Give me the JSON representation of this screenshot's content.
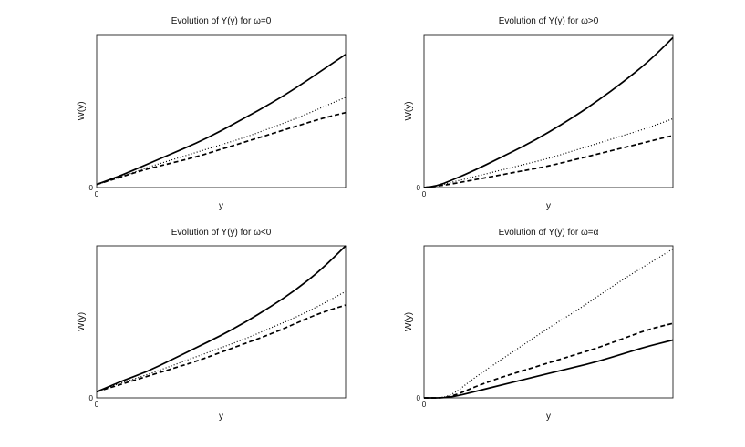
{
  "chart_data": [
    {
      "type": "line",
      "title": "Evolution of Y(y) for ω=0",
      "xlabel": "y",
      "ylabel": "W(y)",
      "x_tick_label": "0",
      "y_tick_label": "0",
      "xlim": [
        0,
        1
      ],
      "ylim": [
        0,
        1
      ],
      "grid": false,
      "x": [
        0,
        0.1,
        0.2,
        0.3,
        0.4,
        0.5,
        0.6,
        0.7,
        0.8,
        0.9,
        1.0
      ],
      "series": [
        {
          "style": "solid",
          "values": [
            0.02,
            0.08,
            0.15,
            0.22,
            0.29,
            0.37,
            0.46,
            0.55,
            0.65,
            0.76,
            0.87
          ]
        },
        {
          "style": "dotted",
          "values": [
            0.02,
            0.07,
            0.13,
            0.18,
            0.23,
            0.28,
            0.33,
            0.39,
            0.45,
            0.52,
            0.59
          ]
        },
        {
          "style": "dashed",
          "values": [
            0.02,
            0.07,
            0.12,
            0.16,
            0.2,
            0.25,
            0.3,
            0.35,
            0.4,
            0.45,
            0.49
          ]
        }
      ]
    },
    {
      "type": "line",
      "title": "Evolution of Y(y) for ω>0",
      "xlabel": "y",
      "ylabel": "W(y)",
      "x_tick_label": "0",
      "y_tick_label": "0",
      "xlim": [
        0,
        1
      ],
      "ylim": [
        0,
        1
      ],
      "grid": false,
      "x": [
        0,
        0.05,
        0.1,
        0.2,
        0.3,
        0.4,
        0.5,
        0.6,
        0.7,
        0.8,
        0.9,
        1.0
      ],
      "series": [
        {
          "style": "solid",
          "values": [
            0.0,
            0.01,
            0.04,
            0.11,
            0.19,
            0.27,
            0.36,
            0.46,
            0.57,
            0.69,
            0.82,
            0.98
          ]
        },
        {
          "style": "dotted",
          "values": [
            0.0,
            0.01,
            0.03,
            0.07,
            0.11,
            0.15,
            0.19,
            0.24,
            0.29,
            0.34,
            0.39,
            0.45
          ]
        },
        {
          "style": "dashed",
          "values": [
            0.0,
            0.01,
            0.02,
            0.05,
            0.08,
            0.11,
            0.14,
            0.18,
            0.22,
            0.26,
            0.3,
            0.34
          ]
        }
      ]
    },
    {
      "type": "line",
      "title": "Evolution of Y(y) for ω<0",
      "xlabel": "y",
      "ylabel": "W(y)",
      "x_tick_label": "0",
      "y_tick_label": "0",
      "xlim": [
        0,
        1
      ],
      "ylim": [
        0,
        1
      ],
      "grid": false,
      "x": [
        0,
        0.1,
        0.2,
        0.3,
        0.4,
        0.5,
        0.6,
        0.7,
        0.8,
        0.9,
        1.0
      ],
      "series": [
        {
          "style": "solid",
          "values": [
            0.04,
            0.11,
            0.17,
            0.25,
            0.33,
            0.41,
            0.5,
            0.6,
            0.71,
            0.84,
            1.0
          ]
        },
        {
          "style": "dotted",
          "values": [
            0.04,
            0.1,
            0.15,
            0.21,
            0.27,
            0.33,
            0.39,
            0.46,
            0.53,
            0.61,
            0.7
          ]
        },
        {
          "style": "dashed",
          "values": [
            0.04,
            0.09,
            0.14,
            0.19,
            0.24,
            0.3,
            0.36,
            0.42,
            0.49,
            0.56,
            0.61
          ]
        }
      ]
    },
    {
      "type": "line",
      "title": "Evolution of Y(y) for ω=α",
      "xlabel": "y",
      "ylabel": "W(y)",
      "x_tick_label": "0",
      "y_tick_label": "0",
      "xlim": [
        0,
        1
      ],
      "ylim": [
        0,
        1
      ],
      "grid": false,
      "x": [
        0,
        0.1,
        0.2,
        0.3,
        0.4,
        0.5,
        0.6,
        0.7,
        0.8,
        0.9,
        1.0
      ],
      "series": [
        {
          "style": "solid",
          "values": [
            0.0,
            0.0,
            0.04,
            0.08,
            0.12,
            0.16,
            0.2,
            0.24,
            0.29,
            0.34,
            0.38
          ]
        },
        {
          "style": "dotted",
          "values": [
            0.0,
            0.0,
            0.13,
            0.24,
            0.35,
            0.46,
            0.56,
            0.67,
            0.78,
            0.88,
            0.98
          ]
        },
        {
          "style": "dashed",
          "values": [
            0.0,
            0.0,
            0.07,
            0.13,
            0.18,
            0.23,
            0.28,
            0.33,
            0.39,
            0.45,
            0.49
          ]
        }
      ]
    }
  ]
}
